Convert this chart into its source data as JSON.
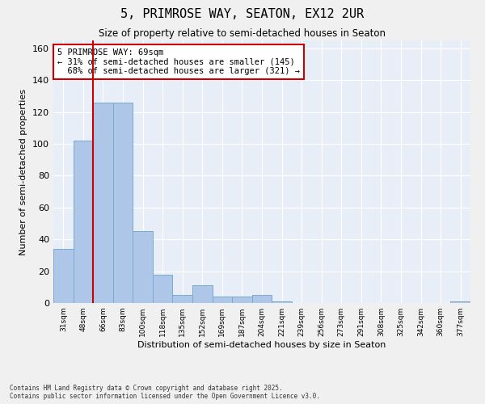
{
  "title": "5, PRIMROSE WAY, SEATON, EX12 2UR",
  "subtitle": "Size of property relative to semi-detached houses in Seaton",
  "xlabel": "Distribution of semi-detached houses by size in Seaton",
  "ylabel": "Number of semi-detached properties",
  "categories": [
    "31sqm",
    "48sqm",
    "66sqm",
    "83sqm",
    "100sqm",
    "118sqm",
    "135sqm",
    "152sqm",
    "169sqm",
    "187sqm",
    "204sqm",
    "221sqm",
    "239sqm",
    "256sqm",
    "273sqm",
    "291sqm",
    "308sqm",
    "325sqm",
    "342sqm",
    "360sqm",
    "377sqm"
  ],
  "values": [
    34,
    102,
    126,
    126,
    45,
    18,
    5,
    11,
    4,
    4,
    5,
    1,
    0,
    0,
    0,
    0,
    0,
    0,
    0,
    0,
    1
  ],
  "bar_color": "#aec6e8",
  "bar_edge_color": "#7aaad0",
  "subject_line_color": "#cc0000",
  "subject_label": "5 PRIMROSE WAY: 69sqm",
  "pct_smaller": 31,
  "pct_larger": 68,
  "count_smaller": 145,
  "count_larger": 321,
  "annotation_box_color": "#cc0000",
  "ylim": [
    0,
    165
  ],
  "yticks": [
    0,
    20,
    40,
    60,
    80,
    100,
    120,
    140,
    160
  ],
  "background_color": "#e8eef7",
  "grid_color": "#ffffff",
  "fig_background": "#f0f0f0",
  "footer_line1": "Contains HM Land Registry data © Crown copyright and database right 2025.",
  "footer_line2": "Contains public sector information licensed under the Open Government Licence v3.0."
}
